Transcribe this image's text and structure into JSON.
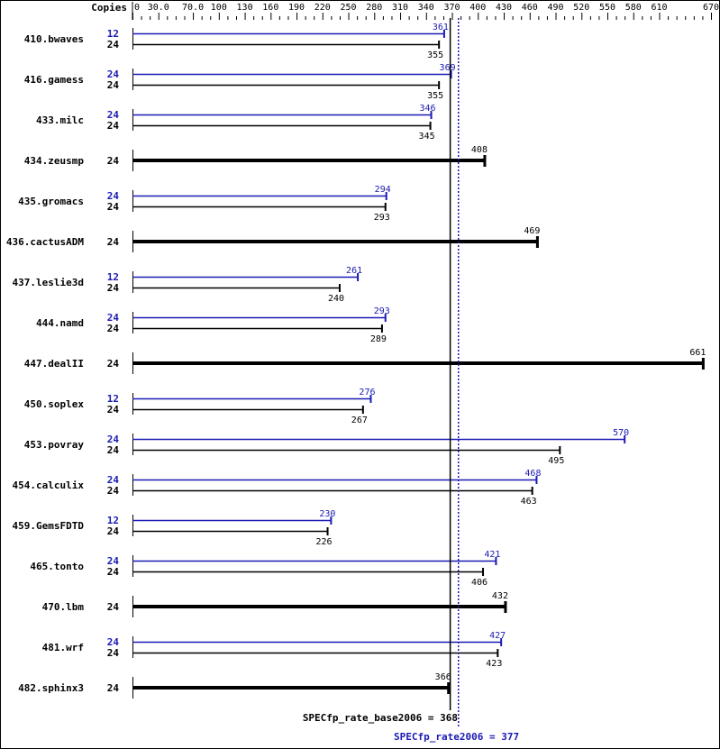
{
  "chart_data": {
    "type": "bar",
    "orientation": "horizontal",
    "copies_header": "Copies",
    "xlim": [
      0,
      670
    ],
    "tick_labels": [
      "0",
      "30.0",
      "70.0",
      "100",
      "130",
      "160",
      "190",
      "220",
      "250",
      "280",
      "310",
      "340",
      "370",
      "400",
      "430",
      "460",
      "490",
      "520",
      "550",
      "580",
      "610",
      "670"
    ],
    "colors": {
      "peak": "#1a1ab4",
      "base": "#000000"
    },
    "benchmarks": [
      {
        "name": "410.bwaves",
        "peak_copies": "12",
        "peak": 361,
        "base_copies": "24",
        "base": 355
      },
      {
        "name": "416.gamess",
        "peak_copies": "24",
        "peak": 369,
        "base_copies": "24",
        "base": 355
      },
      {
        "name": "433.milc",
        "peak_copies": "24",
        "peak": 346,
        "base_copies": "24",
        "base": 345
      },
      {
        "name": "434.zeusmp",
        "base_copies": "24",
        "base": 408
      },
      {
        "name": "435.gromacs",
        "peak_copies": "24",
        "peak": 294,
        "base_copies": "24",
        "base": 293
      },
      {
        "name": "436.cactusADM",
        "base_copies": "24",
        "base": 469
      },
      {
        "name": "437.leslie3d",
        "peak_copies": "12",
        "peak": 261,
        "base_copies": "24",
        "base": 240
      },
      {
        "name": "444.namd",
        "peak_copies": "24",
        "peak": 293,
        "base_copies": "24",
        "base": 289
      },
      {
        "name": "447.dealII",
        "base_copies": "24",
        "base": 661
      },
      {
        "name": "450.soplex",
        "peak_copies": "12",
        "peak": 276,
        "base_copies": "24",
        "base": 267
      },
      {
        "name": "453.povray",
        "peak_copies": "24",
        "peak": 570,
        "base_copies": "24",
        "base": 495
      },
      {
        "name": "454.calculix",
        "peak_copies": "24",
        "peak": 468,
        "base_copies": "24",
        "base": 463
      },
      {
        "name": "459.GemsFDTD",
        "peak_copies": "12",
        "peak": 230,
        "base_copies": "24",
        "base": 226
      },
      {
        "name": "465.tonto",
        "peak_copies": "24",
        "peak": 421,
        "base_copies": "24",
        "base": 406
      },
      {
        "name": "470.lbm",
        "base_copies": "24",
        "base": 432
      },
      {
        "name": "481.wrf",
        "peak_copies": "24",
        "peak": 427,
        "base_copies": "24",
        "base": 423
      },
      {
        "name": "482.sphinx3",
        "base_copies": "24",
        "base": 366
      }
    ],
    "reference_lines": [
      {
        "label": "SPECfp_rate_base2006 = 368",
        "value": 368,
        "style": "solid",
        "color": "#000000"
      },
      {
        "label": "SPECfp_rate2006 = 377",
        "value": 377,
        "style": "dotted",
        "color": "#1a1ab4"
      }
    ]
  }
}
